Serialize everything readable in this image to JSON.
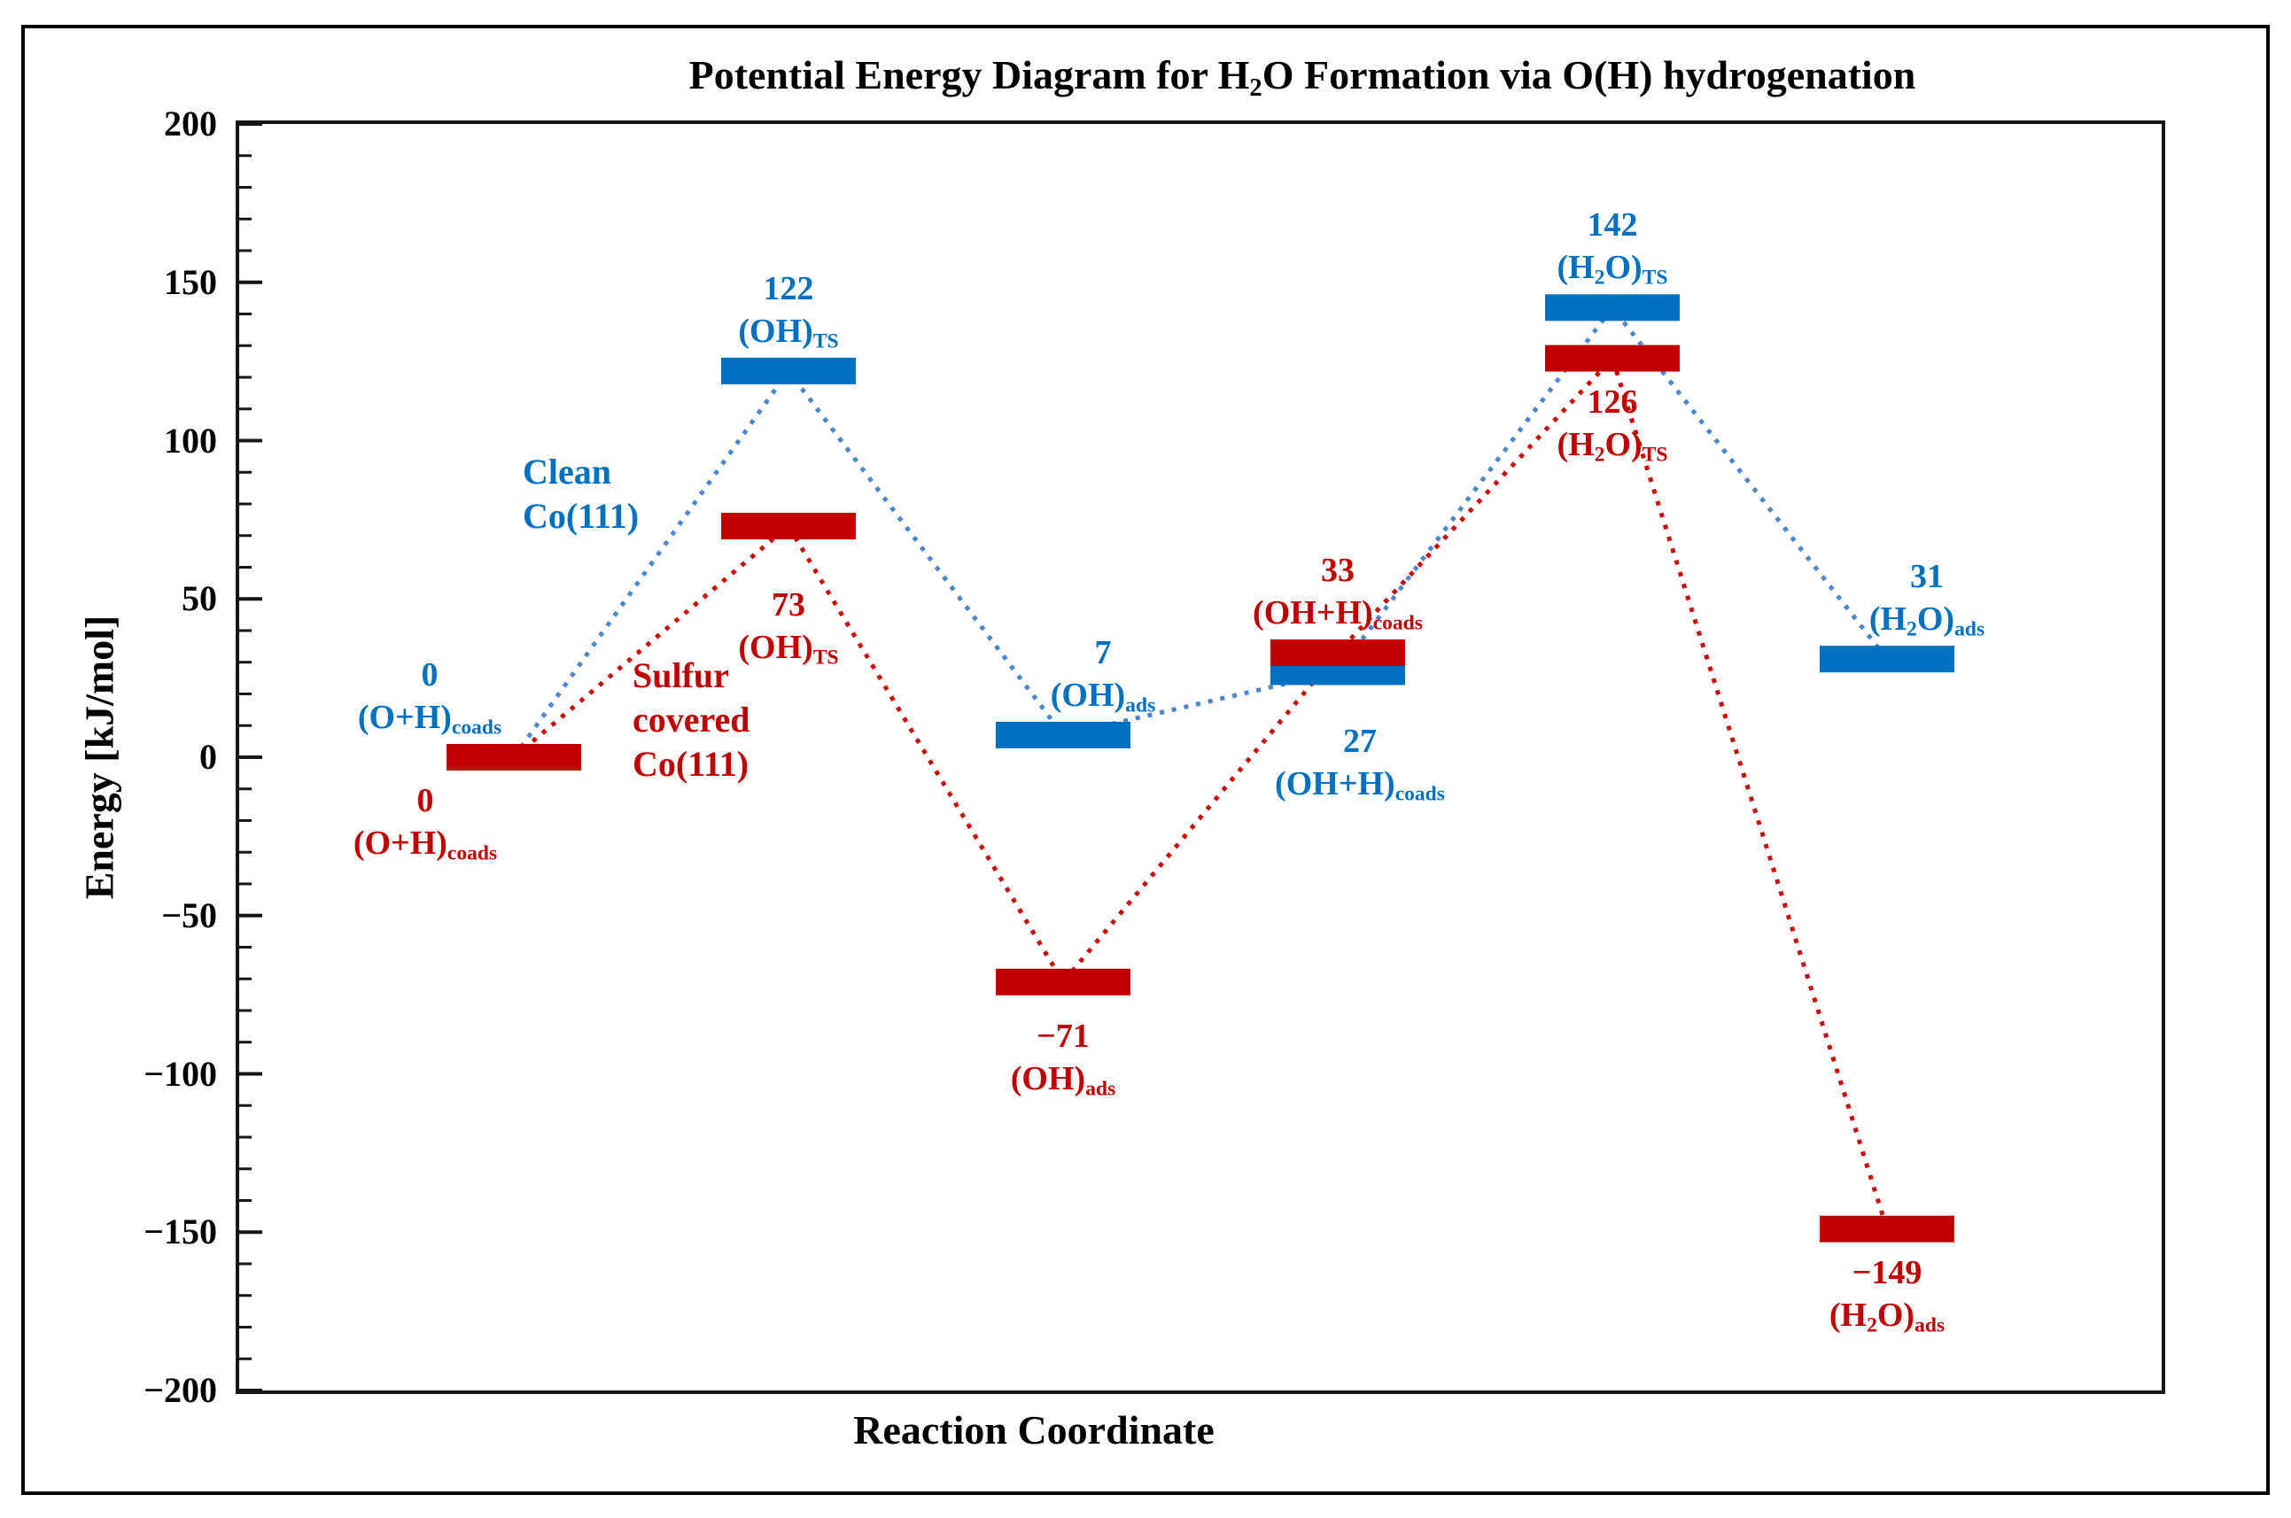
{
  "chart_data": {
    "type": "energy-level-diagram",
    "title": "Potential Energy Diagram for H_{2}O Formation via O(H) hydrogenation",
    "xlabel": "Reaction Coordinate",
    "ylabel": "Energy [kJ/mol]",
    "ylim": [
      -200,
      200
    ],
    "ytick_step_major": 50,
    "ytick_step_minor": 10,
    "ytick_labels": [
      "200",
      "150",
      "100",
      "50",
      "0",
      "−50",
      "−100",
      "−150",
      "−200"
    ],
    "grid": false,
    "legend_position": "inside-top-left-of-first-barrier",
    "categories": [
      "(O+H)_{coads}",
      "(OH)_{TS}",
      "(OH)_{ads}",
      "(OH+H)_{coads}",
      "(H_{2}O)_{TS}",
      "(H_{2}O)_{ads}"
    ],
    "series": [
      {
        "name": "Clean Co(111)",
        "color": "#0070C0",
        "line_color": "#4E86CC",
        "values": [
          0,
          122,
          7,
          27,
          142,
          31
        ],
        "label_side": [
          "above",
          "above",
          "above",
          "below",
          "above",
          "above"
        ],
        "label_dx": [
          -95,
          0,
          45,
          25,
          0,
          45
        ],
        "label_dy": [
          0,
          0,
          0,
          30,
          0,
          0
        ]
      },
      {
        "name": "Sulfur covered Co(111)",
        "color": "#C00000",
        "line_color": "#CC0A0A",
        "values": [
          0,
          73,
          -71,
          33,
          126,
          -149
        ],
        "label_side": [
          "below",
          "below",
          "below",
          "above",
          "below",
          "below"
        ],
        "label_dx": [
          -100,
          0,
          0,
          0,
          0,
          0
        ],
        "label_dy": [
          0,
          40,
          12,
          0,
          0,
          0
        ]
      }
    ],
    "legend": [
      {
        "lines": [
          "Clean",
          "Co(111)"
        ],
        "color": "#0070C0"
      },
      {
        "lines": [
          "Sulfur",
          "covered",
          "Co(111)"
        ],
        "color": "#C00000"
      }
    ]
  }
}
